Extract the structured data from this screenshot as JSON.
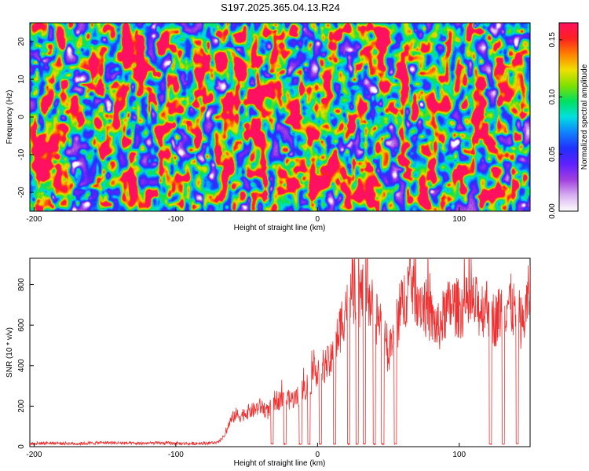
{
  "title": "S197.2025.365.04.13.R24",
  "chart_data": [
    {
      "type": "heatmap",
      "title": "S197.2025.365.04.13.R24",
      "xlabel": "Height of straight line (km)",
      "ylabel": "Frequency (Hz)",
      "xlim": [
        -203,
        150
      ],
      "ylim": [
        -25,
        25
      ],
      "xticks": [
        -200,
        -100,
        0,
        100
      ],
      "xtick_labels": [
        "-200",
        "-100",
        "0",
        "100"
      ],
      "yticks": [
        -20,
        -10,
        0,
        10,
        20
      ],
      "ytick_labels": [
        "-20",
        "-10",
        "0",
        "10",
        "20"
      ],
      "colorbar": {
        "label": "Normalized spectral amplitude",
        "range": [
          0,
          0.165
        ],
        "ticks": [
          0,
          0.05,
          0.1,
          0.15
        ],
        "tick_labels": [
          "0.00",
          "0.05",
          "0.10",
          "0.15"
        ],
        "colormap": [
          "#ffffff",
          "#d8b0f0",
          "#a040e0",
          "#6020ff",
          "#2030ff",
          "#1080ff",
          "#00e0e0",
          "#00e060",
          "#80e000",
          "#f0e000",
          "#ff8000",
          "#ff2020",
          "#ff1060"
        ]
      },
      "description_values": {
        "dominant_range": [
          0.01,
          0.06
        ],
        "peak": 0.16
      }
    },
    {
      "type": "line",
      "title": "",
      "xlabel": "Height of straight line (km)",
      "ylabel": "SNR (10 * v/v)",
      "xlim": [
        -203,
        150
      ],
      "ylim": [
        0,
        930
      ],
      "xticks": [
        -200,
        -100,
        0,
        100
      ],
      "xtick_labels": [
        "-200",
        "-100",
        "0",
        "100"
      ],
      "yticks": [
        0,
        200,
        400,
        600,
        800
      ],
      "ytick_labels": [
        "0",
        "200",
        "400",
        "600",
        "800"
      ],
      "color": "#ee3030",
      "series": [
        {
          "name": "SNR",
          "x": [
            -203,
            -190,
            -170,
            -150,
            -130,
            -110,
            -90,
            -70,
            -65,
            -62,
            -58,
            -55,
            -50,
            -45,
            -40,
            -35,
            -30,
            -25,
            -20,
            -15,
            -10,
            -5,
            0,
            5,
            10,
            15,
            20,
            25,
            30,
            35,
            40,
            45,
            50,
            55,
            60,
            65,
            70,
            75,
            80,
            85,
            90,
            95,
            100,
            105,
            110,
            115,
            120,
            125,
            130,
            135,
            140,
            145,
            150
          ],
          "values": [
            15,
            18,
            15,
            20,
            16,
            18,
            15,
            20,
            60,
            120,
            160,
            150,
            170,
            180,
            200,
            170,
            230,
            230,
            230,
            240,
            280,
            320,
            390,
            400,
            420,
            560,
            700,
            760,
            740,
            780,
            650,
            620,
            450,
            580,
            700,
            820,
            760,
            700,
            640,
            580,
            660,
            700,
            680,
            690,
            700,
            680,
            700,
            620,
            680,
            720,
            650,
            600,
            780
          ],
          "dropouts": [
            -32,
            -23,
            -12,
            -6,
            2,
            12,
            22,
            28,
            33,
            40,
            46,
            55,
            122,
            131,
            141
          ],
          "dropout_floor": 10
        }
      ]
    }
  ]
}
